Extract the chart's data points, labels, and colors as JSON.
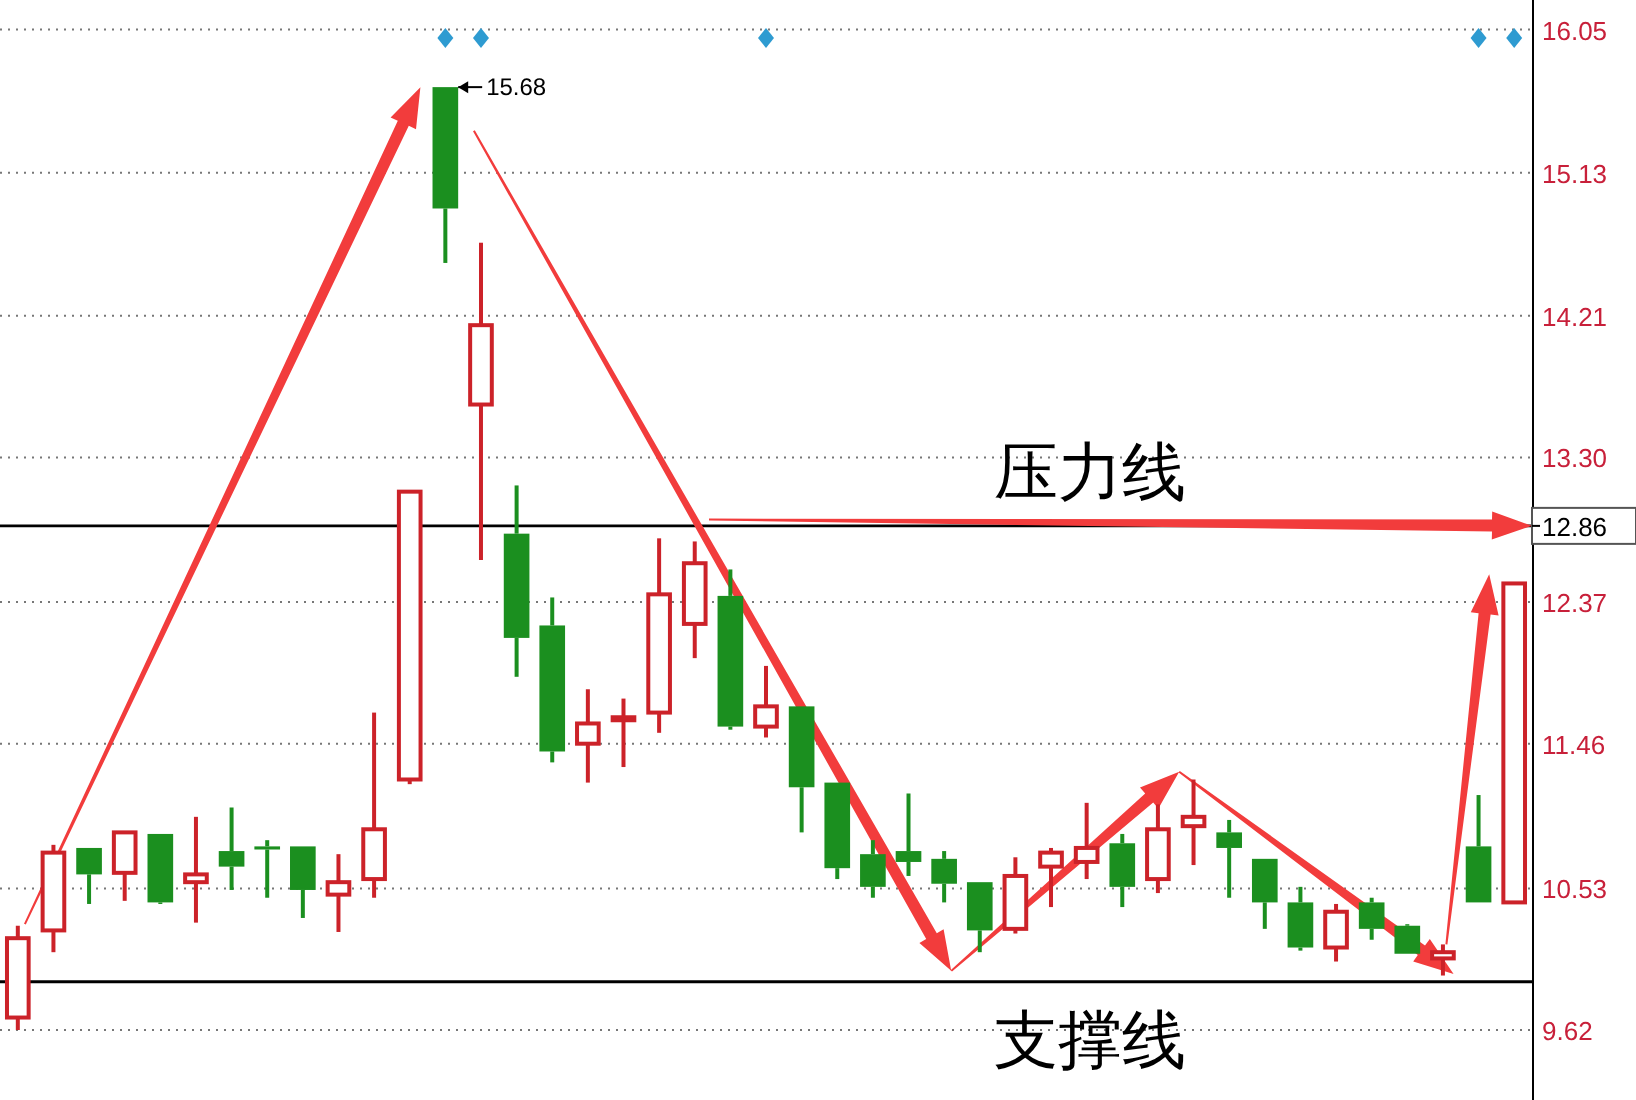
{
  "chart_data": {
    "type": "candlestick",
    "categories": [
      null,
      null,
      null,
      null,
      null,
      null,
      null,
      null,
      null,
      null,
      null,
      null,
      null,
      null,
      null,
      null,
      null,
      null,
      null,
      null,
      null,
      null,
      null,
      null,
      null,
      null,
      null,
      null,
      null,
      null,
      null,
      null,
      null,
      null,
      null,
      null,
      null,
      null,
      null,
      null,
      null,
      null,
      null
    ],
    "ohlc": [
      [
        9.7,
        10.29,
        9.62,
        10.21
      ],
      [
        10.26,
        10.81,
        10.12,
        10.76
      ],
      [
        10.79,
        10.79,
        10.43,
        10.62
      ],
      [
        10.63,
        10.89,
        10.45,
        10.89
      ],
      [
        10.88,
        10.88,
        10.43,
        10.44
      ],
      [
        10.57,
        10.99,
        10.31,
        10.62
      ],
      [
        10.77,
        11.05,
        10.52,
        10.67
      ],
      [
        10.8,
        10.84,
        10.47,
        10.78
      ],
      [
        10.8,
        10.8,
        10.34,
        10.52
      ],
      [
        10.49,
        10.75,
        10.25,
        10.57
      ],
      [
        10.59,
        11.66,
        10.47,
        10.91
      ],
      [
        11.23,
        13.08,
        11.2,
        13.08
      ],
      [
        15.68,
        15.68,
        14.55,
        14.9
      ],
      [
        13.64,
        14.68,
        12.64,
        14.15
      ],
      [
        12.81,
        13.12,
        11.89,
        12.14
      ],
      [
        12.22,
        12.4,
        11.34,
        11.41
      ],
      [
        11.46,
        11.81,
        11.21,
        11.59
      ],
      [
        11.62,
        11.75,
        11.31,
        11.63
      ],
      [
        11.66,
        12.78,
        11.53,
        12.42
      ],
      [
        12.23,
        12.76,
        12.01,
        12.62
      ],
      [
        12.41,
        12.58,
        11.55,
        11.57
      ],
      [
        11.57,
        11.96,
        11.5,
        11.7
      ],
      [
        11.7,
        11.7,
        10.89,
        11.18
      ],
      [
        11.21,
        11.21,
        10.59,
        10.66
      ],
      [
        10.75,
        10.84,
        10.47,
        10.54
      ],
      [
        10.77,
        11.14,
        10.61,
        10.7
      ],
      [
        10.72,
        10.77,
        10.44,
        10.56
      ],
      [
        10.57,
        10.57,
        10.12,
        10.26
      ],
      [
        10.27,
        10.73,
        10.24,
        10.61
      ],
      [
        10.67,
        10.79,
        10.41,
        10.76
      ],
      [
        10.7,
        11.08,
        10.59,
        10.79
      ],
      [
        10.82,
        10.88,
        10.41,
        10.54
      ],
      [
        10.59,
        11.07,
        10.5,
        10.91
      ],
      [
        10.93,
        11.23,
        10.68,
        10.99
      ],
      [
        10.89,
        10.97,
        10.47,
        10.79
      ],
      [
        10.72,
        10.72,
        10.27,
        10.44
      ],
      [
        10.44,
        10.54,
        10.13,
        10.15
      ],
      [
        10.15,
        10.43,
        10.06,
        10.38
      ],
      [
        10.44,
        10.47,
        10.2,
        10.27
      ],
      [
        10.29,
        10.3,
        10.11,
        10.11
      ],
      [
        10.08,
        10.17,
        9.97,
        10.12
      ],
      [
        10.8,
        11.13,
        10.44,
        10.44
      ],
      [
        10.44,
        12.49,
        10.43,
        12.49
      ]
    ],
    "colors": [
      "#cc2229",
      "#cc2229",
      "#1b8f1f",
      "#cc2229",
      "#1b8f1f",
      "#cc2229",
      "#1b8f1f",
      "#1b8f1f",
      "#1b8f1f",
      "#cc2229",
      "#cc2229",
      "#cc2229",
      "#1b8f1f",
      "#cc2229",
      "#1b8f1f",
      "#1b8f1f",
      "#cc2229",
      "#cc2229",
      "#cc2229",
      "#cc2229",
      "#1b8f1f",
      "#cc2229",
      "#1b8f1f",
      "#1b8f1f",
      "#1b8f1f",
      "#1b8f1f",
      "#1b8f1f",
      "#1b8f1f",
      "#cc2229",
      "#cc2229",
      "#cc2229",
      "#1b8f1f",
      "#cc2229",
      "#cc2229",
      "#1b8f1f",
      "#1b8f1f",
      "#1b8f1f",
      "#cc2229",
      "#1b8f1f",
      "#1b8f1f",
      "#cc2229",
      "#1b8f1f",
      "#cc2229"
    ],
    "ylim": [
      9.17,
      16.24
    ],
    "yticks": [
      16.05,
      15.13,
      14.21,
      {
        "value": 13.3,
        "label": "13.30"
      },
      12.86,
      12.37,
      11.46,
      10.53,
      9.62
    ],
    "grid": "y",
    "tick_labels": "y",
    "ref_lines": [
      {
        "axis": "y",
        "value": 12.86,
        "color": "#000000"
      },
      {
        "axis": "y",
        "value": 9.93,
        "color": "#000000"
      }
    ],
    "annotations": [
      "15.68",
      {
        "text": "压力线",
        "y": 12.86
      },
      {
        "text": "支撑线",
        "y": 9.93
      }
    ]
  }
}
